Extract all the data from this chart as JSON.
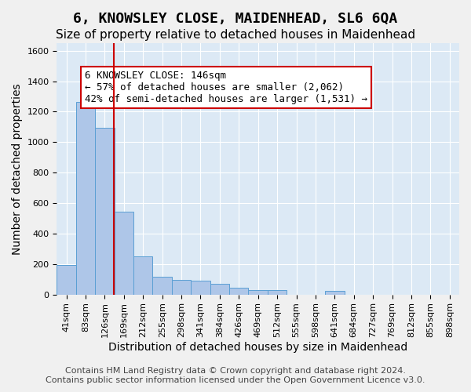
{
  "title": "6, KNOWSLEY CLOSE, MAIDENHEAD, SL6 6QA",
  "subtitle": "Size of property relative to detached houses in Maidenhead",
  "xlabel": "Distribution of detached houses by size in Maidenhead",
  "ylabel": "Number of detached properties",
  "footer_line1": "Contains HM Land Registry data © Crown copyright and database right 2024.",
  "footer_line2": "Contains public sector information licensed under the Open Government Licence v3.0.",
  "bin_labels": [
    "41sqm",
    "83sqm",
    "126sqm",
    "169sqm",
    "212sqm",
    "255sqm",
    "298sqm",
    "341sqm",
    "384sqm",
    "426sqm",
    "469sqm",
    "512sqm",
    "555sqm",
    "598sqm",
    "641sqm",
    "684sqm",
    "727sqm",
    "769sqm",
    "812sqm",
    "855sqm",
    "898sqm"
  ],
  "bar_values": [
    195,
    1265,
    1095,
    545,
    250,
    118,
    97,
    88,
    68,
    42,
    28,
    28,
    0,
    0,
    22,
    0,
    0,
    0,
    0,
    0,
    0
  ],
  "bar_color": "#aec6e8",
  "bar_edge_color": "#5a9fd4",
  "vline_color": "#cc0000",
  "ylim": [
    0,
    1650
  ],
  "yticks": [
    0,
    200,
    400,
    600,
    800,
    1000,
    1200,
    1400,
    1600
  ],
  "annotation_text": "6 KNOWSLEY CLOSE: 146sqm\n← 57% of detached houses are smaller (2,062)\n42% of semi-detached houses are larger (1,531) →",
  "annotation_box_color": "#ffffff",
  "annotation_box_edge_color": "#cc0000",
  "bg_color": "#dce9f5",
  "grid_color": "#ffffff",
  "title_fontsize": 13,
  "subtitle_fontsize": 11,
  "axis_label_fontsize": 10,
  "tick_fontsize": 8,
  "annotation_fontsize": 9,
  "footer_fontsize": 8
}
